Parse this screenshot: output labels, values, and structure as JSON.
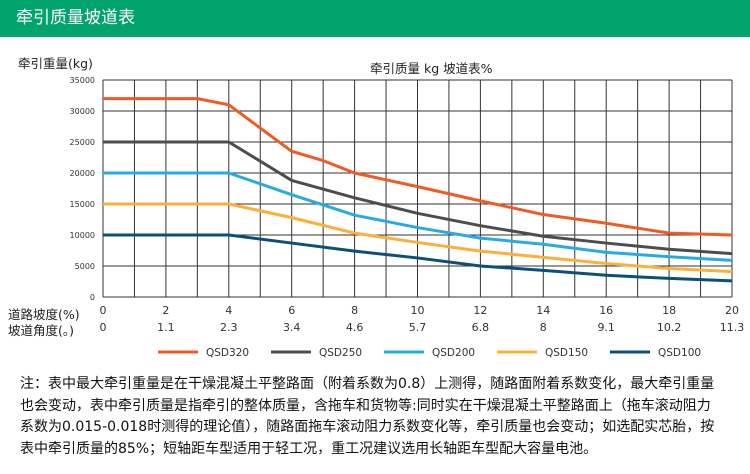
{
  "header": {
    "title": "牵引质量坡道表"
  },
  "chart_data": {
    "type": "line",
    "title": "牵引质量 kg  坡道表%",
    "ylabel": "牵引重量(kg)",
    "xlabel": "道路坡度(%)",
    "x2label": "坡道角度(。)",
    "ylim": [
      0,
      35000
    ],
    "xlim": [
      0,
      20
    ],
    "yticks": [
      0,
      5000,
      10000,
      15000,
      20000,
      25000,
      30000,
      35000
    ],
    "xticks": [
      "0",
      "2",
      "4",
      "6",
      "8",
      "10",
      "12",
      "14",
      "16",
      "18",
      "20"
    ],
    "x2ticks": [
      "0",
      "1.1",
      "2.3",
      "3.4",
      "4.6",
      "5.7",
      "6.8",
      "8",
      "9.1",
      "10.2",
      "11.3"
    ],
    "grid": true,
    "legend": "bottom",
    "series": [
      {
        "name": "QSD320",
        "color": "#f15a22",
        "x": [
          0,
          3,
          4,
          6,
          7,
          8,
          10,
          12,
          14,
          16,
          18,
          20
        ],
        "values": [
          32000,
          32000,
          31000,
          23500,
          22000,
          20000,
          17800,
          15500,
          13300,
          11900,
          10300,
          10000
        ]
      },
      {
        "name": "QSD250",
        "color": "#4d4d4d",
        "x": [
          0,
          4,
          6,
          8,
          10,
          12,
          14,
          16,
          18,
          20
        ],
        "values": [
          25000,
          25000,
          18800,
          16000,
          13500,
          11500,
          9800,
          8700,
          7700,
          7000
        ]
      },
      {
        "name": "QSD200",
        "color": "#29abe2",
        "x": [
          0,
          4,
          6,
          8,
          10,
          12,
          14,
          16,
          18,
          20
        ],
        "values": [
          20000,
          20000,
          16500,
          13200,
          11200,
          9500,
          8500,
          7200,
          6500,
          5900
        ]
      },
      {
        "name": "QSD150",
        "color": "#fbb03b",
        "x": [
          0,
          4,
          6,
          8,
          10,
          12,
          14,
          16,
          18,
          20
        ],
        "values": [
          15000,
          15000,
          12800,
          10300,
          8800,
          7400,
          6400,
          5400,
          4600,
          4100
        ]
      },
      {
        "name": "QSD100",
        "color": "#0b5079",
        "x": [
          0,
          4,
          6,
          8,
          10,
          12,
          14,
          16,
          18,
          20
        ],
        "values": [
          10000,
          10000,
          8700,
          7400,
          6300,
          5000,
          4300,
          3500,
          3000,
          2600
        ]
      }
    ]
  },
  "note": {
    "lines": [
      "注：表中最大牵引重量是在干燥混凝土平整路面（附着系数为0.8）上测得，随路面附着系数变化，最大牵引重量",
      "也会变动，表中牵引质量是指牵引的整体质量，含拖车和货物等:同时实在干燥混凝土平整路面上（拖车滚动阻力",
      "系数为0.015-0.018时测得的理论值），随路面拖车滚动阻力系数变化等，牵引质量也会变动；如选配实芯胎，按",
      "表中牵引质量的85%；短轴距车型适用于轻工况，重工况建议选用长轴距车型配大容量电池。"
    ]
  }
}
